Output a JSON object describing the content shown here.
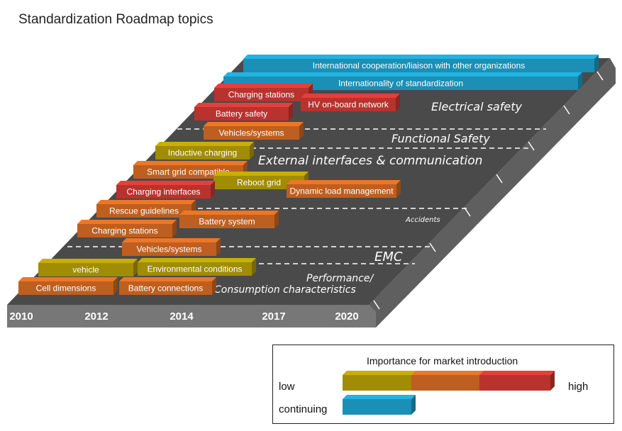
{
  "title": "Standardization Roadmap topics",
  "colors": {
    "low": "#a08c05",
    "medium": "#bd5f20",
    "high": "#b8322e",
    "continuing": "#1b8fb5",
    "platform_top": "#4a4a4a",
    "platform_front": "#777777"
  },
  "years": [
    "2010",
    "2012",
    "2014",
    "2017",
    "2020"
  ],
  "bands": [
    {
      "label": "Electrical safety"
    },
    {
      "label": "Functional Safety"
    },
    {
      "label": "External interfaces & communication"
    },
    {
      "label": "Accidents"
    },
    {
      "label": "EMC"
    },
    {
      "label": "Performance/"
    },
    {
      "label": "Consumption characteristics"
    }
  ],
  "topics": [
    {
      "label": "International cooperation/liaison with other organizations",
      "importance": "continuing"
    },
    {
      "label": "Internationality of standardization",
      "importance": "continuing"
    },
    {
      "label": "Charging stations",
      "importance": "high"
    },
    {
      "label": "HV on-board network",
      "importance": "high"
    },
    {
      "label": "Battery safety",
      "importance": "high"
    },
    {
      "label": "Vehicles/systems",
      "importance": "medium"
    },
    {
      "label": "Inductive charging",
      "importance": "low"
    },
    {
      "label": "Smart grid compatible",
      "importance": "medium"
    },
    {
      "label": "Reboot grid",
      "importance": "low"
    },
    {
      "label": "Charging interfaces",
      "importance": "high"
    },
    {
      "label": "Dynamic load management",
      "importance": "medium"
    },
    {
      "label": "Rescue guidelines",
      "importance": "medium"
    },
    {
      "label": "Battery system",
      "importance": "medium"
    },
    {
      "label": "Charging stations",
      "importance": "medium"
    },
    {
      "label": "Vehicles/systems",
      "importance": "medium"
    },
    {
      "label": "vehicle",
      "importance": "low"
    },
    {
      "label": "Environmental conditions",
      "importance": "low"
    },
    {
      "label": "Cell dimensions",
      "importance": "medium"
    },
    {
      "label": "Battery connections",
      "importance": "medium"
    }
  ],
  "legend": {
    "title": "Importance for market introduction",
    "low_label": "low",
    "high_label": "high",
    "continuing_label": "continuing"
  }
}
